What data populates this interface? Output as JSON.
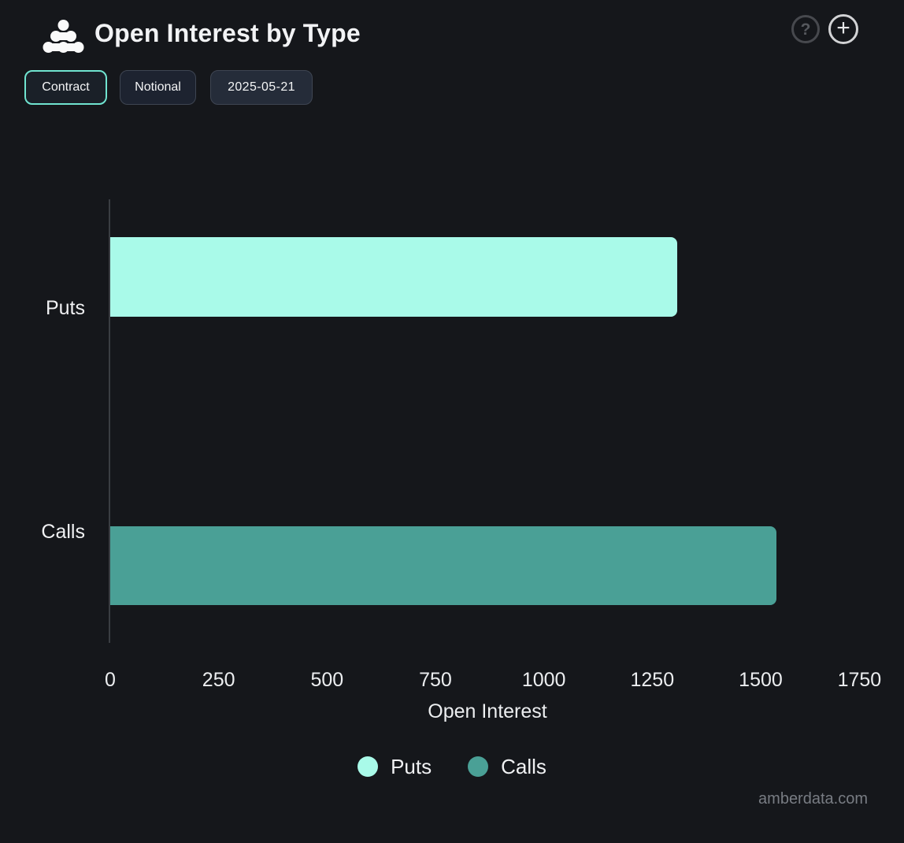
{
  "header": {
    "title": "Open Interest by Type",
    "help_icon": "?",
    "add_icon": "+"
  },
  "toolbar": {
    "buttons": [
      {
        "label": "Contract",
        "active": true
      },
      {
        "label": "Notional",
        "active": false
      },
      {
        "label": "2025-05-21",
        "active": false
      }
    ]
  },
  "chart_data": {
    "type": "bar",
    "orientation": "horizontal",
    "title": "Open Interest by Type",
    "categories": [
      "Puts",
      "Calls"
    ],
    "values": [
      1310,
      1540
    ],
    "colors": [
      "#a9fae9",
      "#4aa096"
    ],
    "xlabel": "Open Interest",
    "ylabel": "",
    "xlim": [
      0,
      1747
    ],
    "xticks": [
      0,
      250,
      500,
      750,
      1000,
      1250,
      1500,
      1750
    ],
    "grid": false,
    "legend": {
      "position": "bottom",
      "entries": [
        {
          "label": "Puts",
          "color": "#a9fae9"
        },
        {
          "label": "Calls",
          "color": "#4aa096"
        }
      ]
    }
  },
  "footer": {
    "watermark": "amberdata.com"
  },
  "colors": {
    "background": "#15171b",
    "accent": "#70e4d0",
    "axis_line": "#3a3d42",
    "bar_puts": "#a9fae9",
    "bar_calls": "#4aa096",
    "muted_text": "#787c83"
  }
}
